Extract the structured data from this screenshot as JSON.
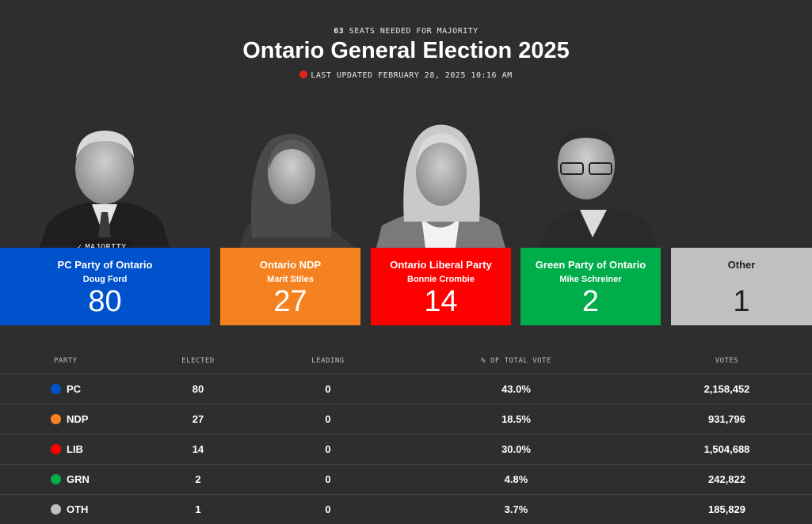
{
  "header": {
    "seats_needed_number": "63",
    "seats_needed_text": "SEATS NEEDED FOR MAJORITY",
    "title": "Ontario General Election 2025",
    "last_updated": "LAST UPDATED FEBRUARY 28, 2025 10:16 AM"
  },
  "majority_badge": "MAJORITY",
  "cards": [
    {
      "party": "PC Party of Ontario",
      "leader": "Doug Ford",
      "seats": "80",
      "color": "#0052cc"
    },
    {
      "party": "Ontario NDP",
      "leader": "Marit Stiles",
      "seats": "27",
      "color": "#f58220"
    },
    {
      "party": "Ontario Liberal Party",
      "leader": "Bonnie Crombie",
      "seats": "14",
      "color": "#ff0000"
    },
    {
      "party": "Green Party of Ontario",
      "leader": "Mike Schreiner",
      "seats": "2",
      "color": "#00ad4b"
    },
    {
      "party": "Other",
      "leader": "",
      "seats": "1",
      "color": "#c0c0c0"
    }
  ],
  "table": {
    "headers": [
      "PARTY",
      "ELECTED",
      "LEADING",
      "% OF TOTAL VOTE",
      "VOTES"
    ],
    "rows": [
      {
        "party": "PC",
        "elected": "80",
        "leading": "0",
        "pct": "43.0%",
        "votes": "2,158,452",
        "color": "#0052cc"
      },
      {
        "party": "NDP",
        "elected": "27",
        "leading": "0",
        "pct": "18.5%",
        "votes": "931,796",
        "color": "#f58220"
      },
      {
        "party": "LIB",
        "elected": "14",
        "leading": "0",
        "pct": "30.0%",
        "votes": "1,504,688",
        "color": "#ff0000"
      },
      {
        "party": "GRN",
        "elected": "2",
        "leading": "0",
        "pct": "4.8%",
        "votes": "242,822",
        "color": "#00ad4b"
      },
      {
        "party": "OTH",
        "elected": "1",
        "leading": "0",
        "pct": "3.7%",
        "votes": "185,829",
        "color": "#c0c0c0"
      }
    ]
  }
}
